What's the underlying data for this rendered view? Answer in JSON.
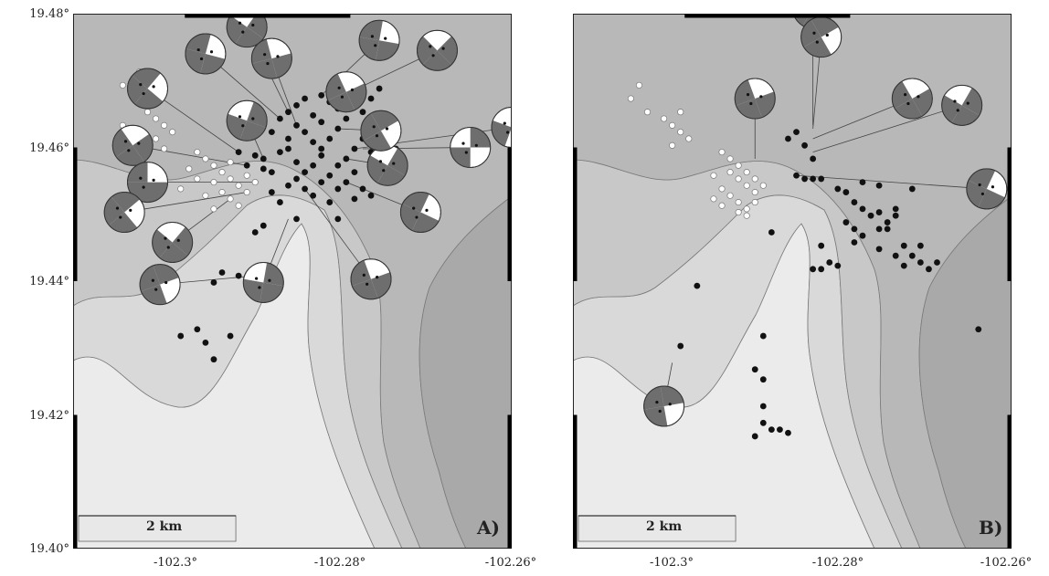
{
  "y_ticks": [
    "19.48°",
    "19.46°",
    "19.44°",
    "19.42°",
    "19.40°"
  ],
  "x_ticks": [
    "-102.3°",
    "-102.28°",
    "-102.26°"
  ],
  "panels": [
    {
      "id": "A",
      "letter": "A)",
      "scale_label": "2 km",
      "black_events": [
        [
          -102.2935,
          19.4593
        ],
        [
          -102.2915,
          19.4588
        ],
        [
          -102.2905,
          19.4583
        ],
        [
          -102.2925,
          19.4573
        ],
        [
          -102.2905,
          19.4568
        ],
        [
          -102.2895,
          19.4563
        ],
        [
          -102.2885,
          19.4593
        ],
        [
          -102.2875,
          19.4613
        ],
        [
          -102.2865,
          19.4633
        ],
        [
          -102.2875,
          19.4653
        ],
        [
          -102.2865,
          19.4663
        ],
        [
          -102.2855,
          19.4673
        ],
        [
          -102.2845,
          19.4648
        ],
        [
          -102.2835,
          19.4638
        ],
        [
          -102.2855,
          19.4623
        ],
        [
          -102.2845,
          19.4608
        ],
        [
          -102.2835,
          19.4598
        ],
        [
          -102.2825,
          19.4613
        ],
        [
          -102.2815,
          19.4628
        ],
        [
          -102.2805,
          19.4643
        ],
        [
          -102.2815,
          19.4658
        ],
        [
          -102.2825,
          19.4668
        ],
        [
          -102.2835,
          19.4678
        ],
        [
          -102.2845,
          19.4573
        ],
        [
          -102.2855,
          19.4563
        ],
        [
          -102.2865,
          19.4553
        ],
        [
          -102.2875,
          19.4543
        ],
        [
          -102.2855,
          19.4538
        ],
        [
          -102.2835,
          19.4548
        ],
        [
          -102.2825,
          19.4558
        ],
        [
          -102.2815,
          19.4573
        ],
        [
          -102.2805,
          19.4583
        ],
        [
          -102.2795,
          19.4598
        ],
        [
          -102.2785,
          19.4613
        ],
        [
          -102.2775,
          19.4593
        ],
        [
          -102.2795,
          19.4563
        ],
        [
          -102.2805,
          19.4548
        ],
        [
          -102.2785,
          19.4538
        ],
        [
          -102.2865,
          19.4578
        ],
        [
          -102.2875,
          19.4598
        ],
        [
          -102.2845,
          19.4528
        ],
        [
          -102.2895,
          19.4533
        ],
        [
          -102.2885,
          19.4518
        ],
        [
          -102.2825,
          19.4518
        ],
        [
          -102.2815,
          19.4493
        ],
        [
          -102.2905,
          19.4483
        ],
        [
          -102.2915,
          19.4473
        ],
        [
          -102.2865,
          19.4493
        ],
        [
          -102.2955,
          19.4413
        ],
        [
          -102.2935,
          19.4408
        ],
        [
          -102.2965,
          19.4398
        ],
        [
          -102.2985,
          19.4328
        ],
        [
          -102.2975,
          19.4308
        ],
        [
          -102.3005,
          19.4318
        ],
        [
          -102.2945,
          19.4318
        ],
        [
          -102.2965,
          19.4283
        ],
        [
          -102.2915,
          19.4408
        ],
        [
          -102.2785,
          19.4653
        ],
        [
          -102.2775,
          19.4673
        ],
        [
          -102.2765,
          19.4688
        ],
        [
          -102.2755,
          19.4618
        ],
        [
          -102.2745,
          19.4598
        ],
        [
          -102.2765,
          19.4573
        ],
        [
          -102.2755,
          19.4553
        ],
        [
          -102.2885,
          19.4643
        ],
        [
          -102.2895,
          19.4623
        ],
        [
          -102.2835,
          19.4588
        ],
        [
          -102.2815,
          19.4538
        ],
        [
          -102.2795,
          19.4523
        ],
        [
          -102.2775,
          19.4528
        ]
      ],
      "white_events": [
        [
          -102.3055,
          19.4713
        ],
        [
          -102.3075,
          19.4693
        ],
        [
          -102.3045,
          19.4653
        ],
        [
          -102.3035,
          19.4643
        ],
        [
          -102.3025,
          19.4633
        ],
        [
          -102.3015,
          19.4623
        ],
        [
          -102.3035,
          19.4613
        ],
        [
          -102.3025,
          19.4598
        ],
        [
          -102.3075,
          19.4633
        ],
        [
          -102.2985,
          19.4593
        ],
        [
          -102.2975,
          19.4583
        ],
        [
          -102.2965,
          19.4573
        ],
        [
          -102.2955,
          19.4563
        ],
        [
          -102.2945,
          19.4553
        ],
        [
          -102.2935,
          19.4543
        ],
        [
          -102.2925,
          19.4533
        ],
        [
          -102.2965,
          19.4548
        ],
        [
          -102.2955,
          19.4533
        ],
        [
          -102.2945,
          19.4523
        ],
        [
          -102.2935,
          19.4513
        ],
        [
          -102.2975,
          19.4528
        ],
        [
          -102.2985,
          19.4553
        ],
        [
          -102.2995,
          19.4568
        ],
        [
          -102.2925,
          19.4558
        ],
        [
          -102.2945,
          19.4578
        ],
        [
          -102.2915,
          19.4548
        ],
        [
          -102.3005,
          19.4538
        ],
        [
          -102.2965,
          19.4508
        ]
      ],
      "mechanisms": [
        {
          "lat": 19.478,
          "lon": -102.2925,
          "r": 0.00155,
          "strike": 35,
          "dark": [
            0,
            1,
            3,
            0,
            1,
            3
          ],
          "anchor": [
            -102.2875,
            19.4653
          ]
        },
        {
          "lat": 19.474,
          "lon": -102.2975,
          "r": 0.00155,
          "strike": 105,
          "dark": [
            0,
            1,
            3,
            0,
            1,
            3
          ],
          "anchor": [
            -102.2885,
            19.4643
          ]
        },
        {
          "lat": 19.4733,
          "lon": -102.2895,
          "r": 0.00155,
          "strike": 75,
          "dark": [
            0,
            1,
            3,
            0,
            1,
            3
          ],
          "anchor": [
            -102.2865,
            19.4633
          ]
        },
        {
          "lat": 19.4688,
          "lon": -102.3045,
          "r": 0.00155,
          "strike": 130,
          "dark": [
            0,
            1,
            3,
            0,
            1,
            3
          ],
          "anchor": [
            -102.2935,
            19.4593
          ]
        },
        {
          "lat": 19.464,
          "lon": -102.2925,
          "r": 0.00155,
          "strike": 20,
          "dark": [
            0,
            1,
            3,
            0,
            1,
            3
          ],
          "anchor": [
            -102.2905,
            19.4583
          ]
        },
        {
          "lat": 19.4603,
          "lon": -102.3063,
          "r": 0.00155,
          "strike": 55,
          "dark": [
            0,
            1,
            3,
            0,
            1,
            3
          ],
          "anchor": [
            -102.2925,
            19.4573
          ]
        },
        {
          "lat": 19.4548,
          "lon": -102.3045,
          "r": 0.00155,
          "strike": 90,
          "dark": [
            0,
            1,
            3,
            0,
            1,
            3
          ],
          "anchor": [
            -102.2915,
            19.4548
          ]
        },
        {
          "lat": 19.4503,
          "lon": -102.3073,
          "r": 0.00155,
          "strike": 140,
          "dark": [
            0,
            1,
            3,
            0,
            1,
            3
          ],
          "anchor": [
            -102.2925,
            19.4533
          ]
        },
        {
          "lat": 19.4458,
          "lon": -102.3015,
          "r": 0.00155,
          "strike": 40,
          "dark": [
            0,
            1,
            3,
            0,
            1,
            3
          ],
          "anchor": [
            -102.2945,
            19.4523
          ]
        },
        {
          "lat": 19.4395,
          "lon": -102.303,
          "r": 0.00155,
          "strike": 160,
          "dark": [
            0,
            1,
            3,
            0,
            1,
            3
          ],
          "anchor": [
            -102.2915,
            19.4408
          ]
        },
        {
          "lat": 19.4398,
          "lon": -102.2905,
          "r": 0.00155,
          "strike": 10,
          "dark": [
            0,
            1,
            3,
            0,
            1,
            3
          ],
          "anchor": [
            -102.2875,
            19.4493
          ]
        },
        {
          "lat": 19.4403,
          "lon": -102.2775,
          "r": 0.00155,
          "strike": 70,
          "dark": [
            0,
            1,
            3,
            0,
            1,
            3
          ],
          "anchor": [
            -102.2855,
            19.4538
          ]
        },
        {
          "lat": 19.4503,
          "lon": -102.2715,
          "r": 0.00155,
          "strike": 115,
          "dark": [
            0,
            1,
            3,
            0,
            1,
            3
          ],
          "anchor": [
            -102.2805,
            19.4548
          ]
        },
        {
          "lat": 19.4573,
          "lon": -102.2755,
          "r": 0.00155,
          "strike": 30,
          "dark": [
            0,
            1,
            3,
            0,
            1,
            3
          ],
          "anchor": [
            -102.2805,
            19.4583
          ]
        },
        {
          "lat": 19.4625,
          "lon": -102.2763,
          "r": 0.00155,
          "strike": 150,
          "dark": [
            0,
            1,
            3,
            0,
            1,
            3
          ],
          "anchor": [
            -102.2815,
            19.4628
          ]
        },
        {
          "lat": 19.4683,
          "lon": -102.2805,
          "r": 0.00155,
          "strike": 65,
          "dark": [
            0,
            1,
            3,
            0,
            1,
            3
          ],
          "anchor": [
            -102.2815,
            19.4658
          ]
        },
        {
          "lat": 19.476,
          "lon": -102.2765,
          "r": 0.00155,
          "strike": 100,
          "dark": [
            0,
            1,
            3,
            0,
            1,
            3
          ],
          "anchor": [
            -102.2835,
            19.4678
          ]
        },
        {
          "lat": 19.4745,
          "lon": -102.2695,
          "r": 0.00155,
          "strike": 45,
          "dark": [
            0,
            1,
            3,
            0,
            1,
            3
          ],
          "anchor": [
            -102.2825,
            19.4668
          ]
        },
        {
          "lat": 19.46,
          "lon": -102.2655,
          "r": 0.00155,
          "strike": 0,
          "dark": [
            1,
            3
          ],
          "anchor": [
            -102.2785,
            19.4598
          ]
        },
        {
          "lat": 19.463,
          "lon": -102.2605,
          "r": 0.00155,
          "strike": 20,
          "dark": [
            1,
            3
          ],
          "anchor": [
            -102.2795,
            19.4598
          ]
        }
      ]
    },
    {
      "id": "B",
      "letter": "B)",
      "scale_label": "2 km",
      "black_events": [
        [
          -102.2875,
          19.4613
        ],
        [
          -102.2865,
          19.4623
        ],
        [
          -102.2855,
          19.4603
        ],
        [
          -102.2845,
          19.4583
        ],
        [
          -102.2865,
          19.4558
        ],
        [
          -102.2855,
          19.4553
        ],
        [
          -102.2845,
          19.4553
        ],
        [
          -102.2835,
          19.4553
        ],
        [
          -102.2815,
          19.4538
        ],
        [
          -102.2805,
          19.4533
        ],
        [
          -102.2785,
          19.4548
        ],
        [
          -102.2765,
          19.4543
        ],
        [
          -102.2795,
          19.4518
        ],
        [
          -102.2785,
          19.4508
        ],
        [
          -102.2775,
          19.4498
        ],
        [
          -102.2805,
          19.4488
        ],
        [
          -102.2795,
          19.4478
        ],
        [
          -102.2785,
          19.4468
        ],
        [
          -102.2765,
          19.4478
        ],
        [
          -102.2755,
          19.4488
        ],
        [
          -102.2745,
          19.4498
        ],
        [
          -102.2765,
          19.4503
        ],
        [
          -102.2745,
          19.4508
        ],
        [
          -102.2755,
          19.4478
        ],
        [
          -102.2725,
          19.4538
        ],
        [
          -102.2835,
          19.4453
        ],
        [
          -102.2825,
          19.4428
        ],
        [
          -102.2835,
          19.4418
        ],
        [
          -102.2815,
          19.4423
        ],
        [
          -102.2845,
          19.4418
        ],
        [
          -102.2795,
          19.4458
        ],
        [
          -102.2765,
          19.4448
        ],
        [
          -102.2745,
          19.4438
        ],
        [
          -102.2725,
          19.4438
        ],
        [
          -102.2715,
          19.4428
        ],
        [
          -102.2735,
          19.4423
        ],
        [
          -102.2705,
          19.4418
        ],
        [
          -102.2695,
          19.4428
        ],
        [
          -102.2735,
          19.4453
        ],
        [
          -102.2715,
          19.4453
        ],
        [
          -102.2895,
          19.4473
        ],
        [
          -102.2985,
          19.4393
        ],
        [
          -102.3005,
          19.4303
        ],
        [
          -102.2905,
          19.4318
        ],
        [
          -102.2915,
          19.4268
        ],
        [
          -102.2905,
          19.4253
        ],
        [
          -102.2905,
          19.4213
        ],
        [
          -102.2905,
          19.4188
        ],
        [
          -102.2895,
          19.4178
        ],
        [
          -102.2885,
          19.4178
        ],
        [
          -102.2875,
          19.4173
        ],
        [
          -102.2915,
          19.4168
        ],
        [
          -102.2645,
          19.4328
        ]
      ],
      "white_events": [
        [
          -102.3055,
          19.4693
        ],
        [
          -102.3065,
          19.4673
        ],
        [
          -102.3045,
          19.4653
        ],
        [
          -102.3025,
          19.4643
        ],
        [
          -102.3005,
          19.4653
        ],
        [
          -102.3015,
          19.4633
        ],
        [
          -102.3005,
          19.4623
        ],
        [
          -102.2995,
          19.4613
        ],
        [
          -102.3015,
          19.4603
        ],
        [
          -102.2955,
          19.4593
        ],
        [
          -102.2945,
          19.4583
        ],
        [
          -102.2935,
          19.4573
        ],
        [
          -102.2925,
          19.4563
        ],
        [
          -102.2945,
          19.4563
        ],
        [
          -102.2935,
          19.4553
        ],
        [
          -102.2925,
          19.4543
        ],
        [
          -102.2915,
          19.4533
        ],
        [
          -102.2955,
          19.4538
        ],
        [
          -102.2945,
          19.4528
        ],
        [
          -102.2935,
          19.4518
        ],
        [
          -102.2925,
          19.4508
        ],
        [
          -102.2965,
          19.4558
        ],
        [
          -102.2915,
          19.4553
        ],
        [
          -102.2905,
          19.4543
        ],
        [
          -102.2915,
          19.4518
        ],
        [
          -102.2925,
          19.4498
        ],
        [
          -102.2935,
          19.4503
        ],
        [
          -102.2955,
          19.4513
        ],
        [
          -102.2965,
          19.4523
        ]
      ],
      "mechanisms": [
        {
          "lat": 19.4808,
          "lon": -102.2845,
          "r": 0.00155,
          "strike": 120,
          "dark": [
            0,
            1,
            3,
            0,
            1,
            3
          ],
          "anchor": [
            -102.2845,
            19.4633
          ]
        },
        {
          "lat": 19.4765,
          "lon": -102.2835,
          "r": 0.00155,
          "strike": 150,
          "dark": [
            0,
            1,
            3,
            0,
            1,
            3
          ],
          "anchor": [
            -102.2845,
            19.4628
          ]
        },
        {
          "lat": 19.4673,
          "lon": -102.2915,
          "r": 0.00155,
          "strike": 70,
          "dark": [
            0,
            1,
            3,
            0,
            1,
            3
          ],
          "anchor": [
            -102.2915,
            19.4583
          ]
        },
        {
          "lat": 19.4673,
          "lon": -102.2725,
          "r": 0.00155,
          "strike": 60,
          "dark": [
            0,
            1,
            3,
            0,
            1,
            3
          ],
          "anchor": [
            -102.2845,
            19.4613
          ]
        },
        {
          "lat": 19.4663,
          "lon": -102.2665,
          "r": 0.00155,
          "strike": 30,
          "dark": [
            0,
            1,
            3,
            0,
            1,
            3
          ],
          "anchor": [
            -102.2845,
            19.4593
          ]
        },
        {
          "lat": 19.4538,
          "lon": -102.2635,
          "r": 0.00155,
          "strike": 115,
          "dark": [
            0,
            1,
            3,
            0,
            1,
            3
          ],
          "anchor": [
            -102.2865,
            19.4558
          ]
        },
        {
          "lat": 19.4213,
          "lon": -102.3025,
          "r": 0.00155,
          "strike": 170,
          "dark": [
            0,
            1,
            3,
            0,
            1,
            3
          ],
          "anchor": [
            -102.3015,
            19.4278
          ]
        }
      ]
    }
  ]
}
